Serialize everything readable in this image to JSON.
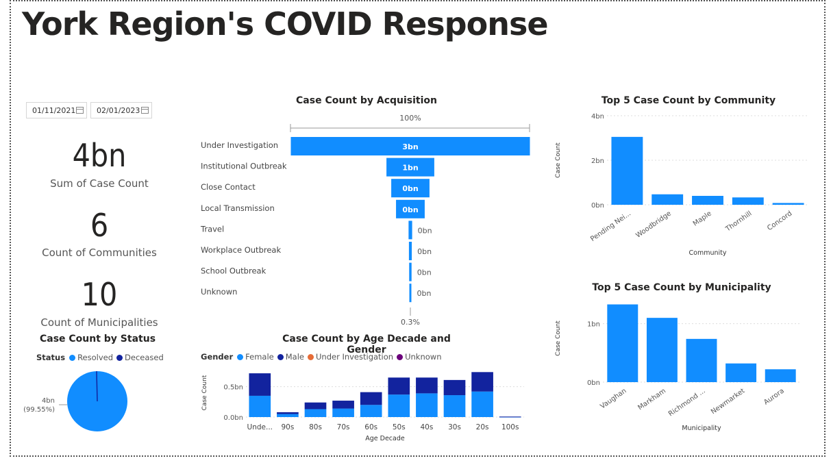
{
  "title": "York Region's COVID Response",
  "dates": {
    "start": "01/11/2021",
    "end": "02/01/2023"
  },
  "kpis": [
    {
      "value": "4bn",
      "label": "Sum of Case Count"
    },
    {
      "value": "6",
      "label": "Count of Communities"
    },
    {
      "value": "10",
      "label": "Count of Municipalities"
    }
  ],
  "colors": {
    "blue": "#118DFF",
    "navy": "#12239E",
    "orange": "#E66C37",
    "purple": "#6B007B"
  },
  "funnel": {
    "title": "Case Count by Acquisition",
    "top_label": "100%",
    "bottom_label": "0.3%",
    "stages": [
      {
        "label": "Under Investigation",
        "value_label": "3bn",
        "share": 1.0
      },
      {
        "label": "Institutional Outbreak",
        "value_label": "1bn",
        "share": 0.2
      },
      {
        "label": "Close Contact",
        "value_label": "0bn",
        "share": 0.16
      },
      {
        "label": "Local Transmission",
        "value_label": "0bn",
        "share": 0.12
      },
      {
        "label": "Travel",
        "value_label": "0bn",
        "share": 0.015
      },
      {
        "label": "Workplace Outbreak",
        "value_label": "0bn",
        "share": 0.012
      },
      {
        "label": "School Outbreak",
        "value_label": "0bn",
        "share": 0.01
      },
      {
        "label": "Unknown",
        "value_label": "0bn",
        "share": 0.003
      }
    ]
  },
  "status": {
    "title": "Case Count by Status",
    "legend_title": "Status",
    "legend": [
      "Resolved",
      "Deceased"
    ],
    "slice_label_value": "4bn",
    "slice_label_pct": "(99.55%)"
  },
  "chart_data": [
    {
      "type": "bar",
      "title": "Top 5 Case Count by Community",
      "xlabel": "Community",
      "ylabel": "Case Count",
      "categories": [
        "Pending Nei...",
        "Woodbridge",
        "Maple",
        "Thornhill",
        "Concord"
      ],
      "values": [
        3.05,
        0.47,
        0.4,
        0.33,
        0.08
      ],
      "ylim": [
        0,
        4
      ],
      "yticks": [
        {
          "v": 0,
          "label": "0bn"
        },
        {
          "v": 2,
          "label": "2bn"
        },
        {
          "v": 4,
          "label": "4bn"
        }
      ]
    },
    {
      "type": "bar",
      "title": "Top 5 Case Count by Municipality",
      "xlabel": "Municipality",
      "ylabel": "Case Count",
      "categories": [
        "Vaughan",
        "Markham",
        "Richmond ...",
        "Newmarket",
        "Aurora"
      ],
      "values": [
        1.33,
        1.1,
        0.74,
        0.32,
        0.22
      ],
      "ylim": [
        0,
        1.5
      ],
      "yticks": [
        {
          "v": 0,
          "label": "0bn"
        },
        {
          "v": 1,
          "label": "1bn"
        }
      ]
    },
    {
      "type": "bar",
      "title": "Case Count by Age Decade and Gender",
      "xlabel": "Age Decade",
      "ylabel": "Case Count",
      "legend_title": "Gender",
      "categories": [
        "Unde...",
        "90s",
        "80s",
        "70s",
        "60s",
        "50s",
        "40s",
        "30s",
        "20s",
        "100s"
      ],
      "series": [
        {
          "name": "Female",
          "values": [
            0.35,
            0.05,
            0.13,
            0.14,
            0.2,
            0.37,
            0.39,
            0.36,
            0.42,
            0.005
          ]
        },
        {
          "name": "Male",
          "values": [
            0.37,
            0.03,
            0.11,
            0.13,
            0.21,
            0.28,
            0.26,
            0.25,
            0.32,
            0.003
          ]
        },
        {
          "name": "Under Investigation",
          "values": [
            0,
            0,
            0,
            0,
            0,
            0,
            0,
            0,
            0,
            0
          ]
        },
        {
          "name": "Unknown",
          "values": [
            0,
            0,
            0,
            0,
            0,
            0,
            0,
            0,
            0,
            0
          ]
        }
      ],
      "ylim": [
        0,
        0.8
      ],
      "yticks": [
        {
          "v": 0,
          "label": "0.0bn"
        },
        {
          "v": 0.5,
          "label": "0.5bn"
        }
      ]
    },
    {
      "type": "pie",
      "title": "Case Count by Status",
      "categories": [
        "Resolved",
        "Deceased"
      ],
      "values": [
        99.55,
        0.45
      ]
    }
  ]
}
